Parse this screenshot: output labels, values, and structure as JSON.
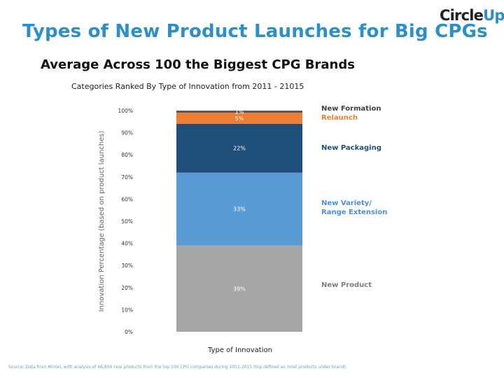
{
  "header": {
    "title": "Types of New Product Launches for Big CPGs",
    "logo_main": "Circle",
    "logo_accent": "Up",
    "subtitle": "Average Across 100 the Biggest CPG Brands",
    "sub_subtitle": "Categories Ranked By Type of Innovation from 2011 - 21015"
  },
  "chart_data": {
    "type": "bar",
    "stacked": true,
    "categories": [
      "Type of Innovation"
    ],
    "xlabel": "Type of Innovation",
    "ylabel": "Innovation Percentage (based on product launches)",
    "ylim": [
      0,
      100
    ],
    "yticks": [
      "0%",
      "10%",
      "20%",
      "30%",
      "40%",
      "50%",
      "60%",
      "70%",
      "80%",
      "90%",
      "100%"
    ],
    "legend_position": "right",
    "series": [
      {
        "name": "New Product",
        "values": [
          39
        ],
        "label": "39%",
        "color": "#a6a6a6",
        "legend_color": "#7f7f7f"
      },
      {
        "name": "New Variety/\nRange Extension",
        "values": [
          33
        ],
        "label": "33%",
        "color": "#5b9bd5",
        "legend_color": "#4a90d6"
      },
      {
        "name": "New Packaging",
        "values": [
          22
        ],
        "label": "22%",
        "color": "#1f4e79",
        "legend_color": "#1f4e79"
      },
      {
        "name": "Relaunch",
        "values": [
          5
        ],
        "label": "5%",
        "color": "#ed7d31",
        "legend_color": "#ed7d31"
      },
      {
        "name": "New Formation",
        "values": [
          1
        ],
        "label": "1%",
        "color": "#595959",
        "legend_color": "#404040"
      }
    ]
  },
  "footer": {
    "source": "Source: Data from Mintel, with analysis of 66,856 new products from the top 100 CPG companies during 2011-2015 (top defined as most products under brand)."
  }
}
